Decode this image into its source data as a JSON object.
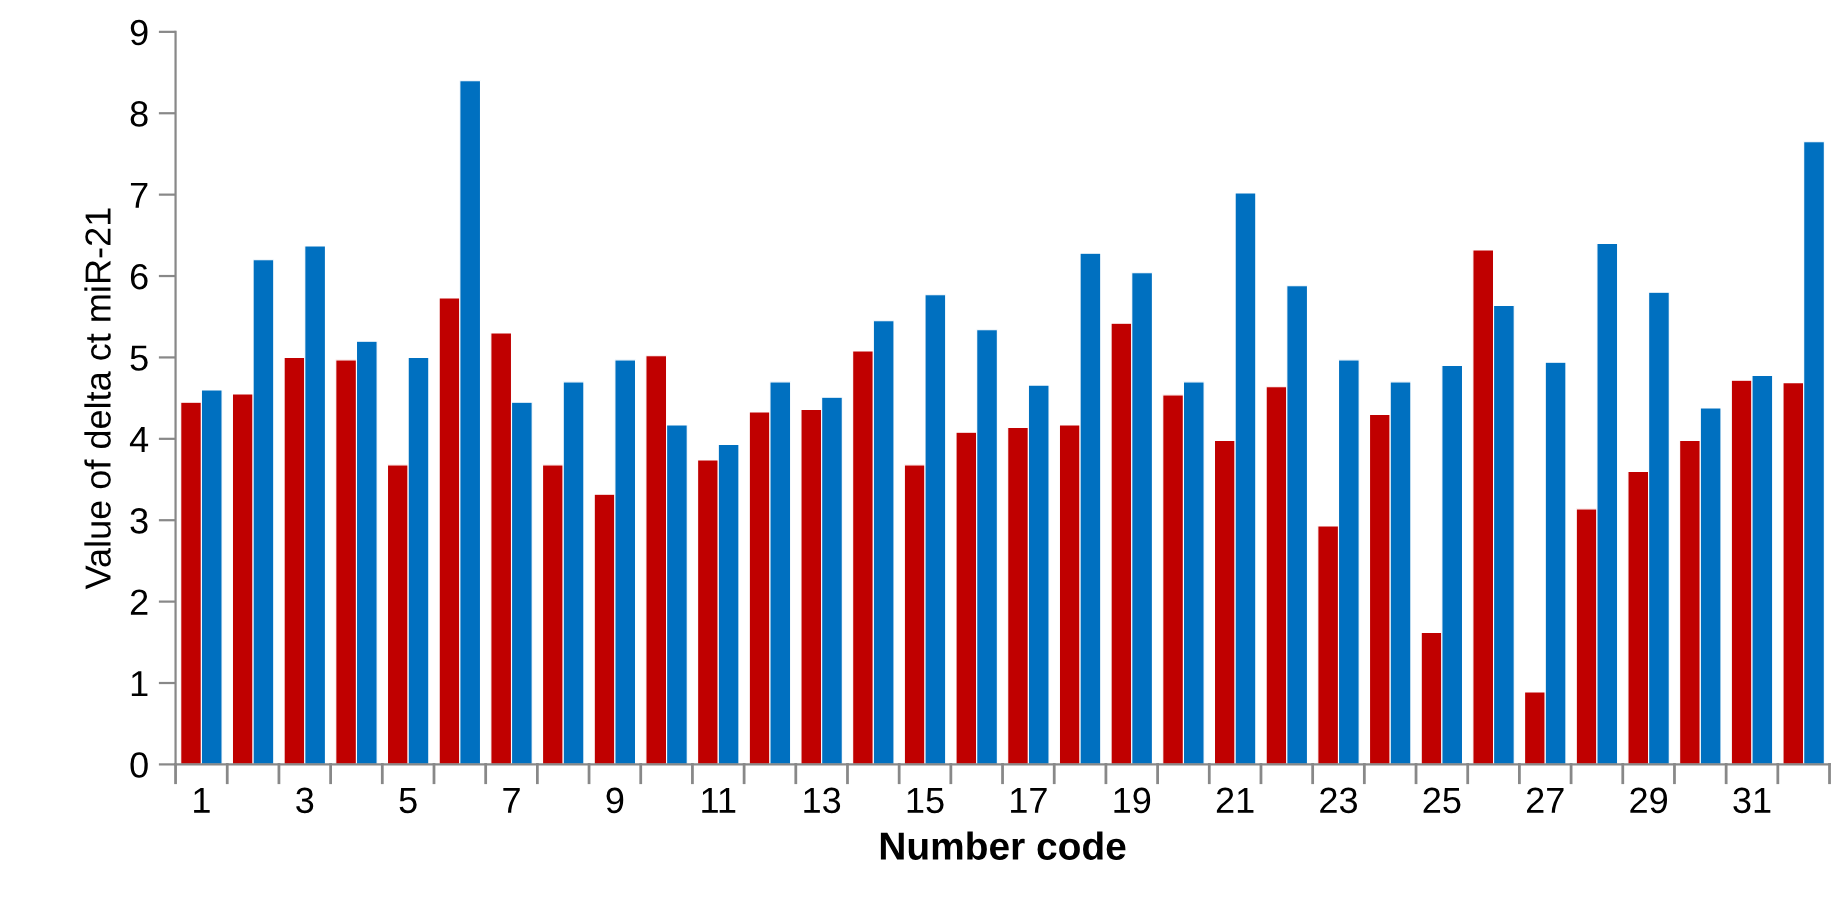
{
  "chart_data": {
    "type": "bar",
    "xlabel": "Number code",
    "ylabel": "Value of delta ct miR-21",
    "categories": [
      "1",
      null,
      "3",
      null,
      "5",
      null,
      "7",
      null,
      "9",
      null,
      "11",
      null,
      "13",
      null,
      "15",
      null,
      "17",
      null,
      "19",
      null,
      "21",
      null,
      "23",
      null,
      "25",
      null,
      "27",
      null,
      "29",
      null,
      "31",
      null
    ],
    "series": [
      {
        "color": "#c00000",
        "values": [
          4.45,
          4.55,
          5.0,
          4.97,
          3.68,
          5.73,
          5.3,
          3.68,
          3.32,
          5.02,
          3.74,
          4.33,
          4.36,
          5.08,
          3.68,
          4.08,
          4.14,
          4.17,
          5.42,
          4.54,
          3.98,
          4.64,
          2.93,
          4.3,
          1.62,
          6.32,
          0.89,
          3.14,
          3.6,
          3.98,
          4.72,
          4.69
        ]
      },
      {
        "color": "#0070c0",
        "values": [
          4.6,
          6.2,
          6.37,
          5.2,
          5.0,
          8.4,
          4.45,
          4.7,
          4.97,
          4.17,
          3.93,
          4.7,
          4.51,
          5.45,
          5.77,
          5.34,
          4.66,
          6.28,
          6.04,
          4.7,
          7.02,
          5.88,
          4.97,
          4.7,
          4.9,
          5.64,
          4.94,
          6.4,
          5.8,
          4.38,
          4.78,
          7.65
        ]
      }
    ],
    "ylim": [
      0,
      9
    ],
    "yticks": [
      0,
      1,
      2,
      3,
      4,
      5,
      6,
      7,
      8,
      9
    ],
    "grid": false,
    "legend": false
  }
}
